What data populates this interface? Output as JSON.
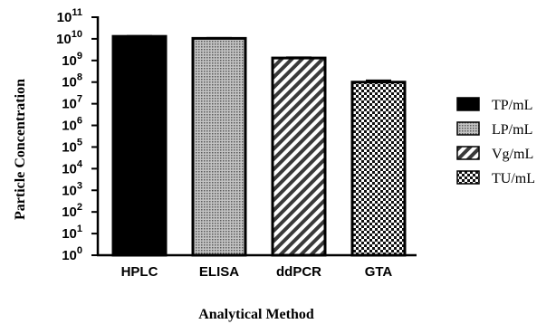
{
  "chart_data": {
    "type": "bar",
    "title": "",
    "xlabel": "Analytical Method",
    "ylabel": "Particle Concentration",
    "categories": [
      "HPLC",
      "ELISA",
      "ddPCR",
      "GTA"
    ],
    "values": [
      13000000000.0,
      10500000000.0,
      1300000000.0,
      100000000.0
    ],
    "error_upper": [
      13500000000.0,
      11000000000.0,
      1400000000.0,
      120000000.0
    ],
    "y_scale": "log",
    "ylim": [
      1,
      100000000000.0
    ],
    "y_ticks": [
      {
        "base": "10",
        "exp": "0"
      },
      {
        "base": "10",
        "exp": "1"
      },
      {
        "base": "10",
        "exp": "2"
      },
      {
        "base": "10",
        "exp": "3"
      },
      {
        "base": "10",
        "exp": "4"
      },
      {
        "base": "10",
        "exp": "5"
      },
      {
        "base": "10",
        "exp": "6"
      },
      {
        "base": "10",
        "exp": "7"
      },
      {
        "base": "10",
        "exp": "8"
      },
      {
        "base": "10",
        "exp": "9"
      },
      {
        "base": "10",
        "exp": "10"
      },
      {
        "base": "10",
        "exp": "11"
      }
    ],
    "legend_position": "right",
    "legend": [
      {
        "label": "TP/mL",
        "pattern": "solid-black"
      },
      {
        "label": "LP/mL",
        "pattern": "dots"
      },
      {
        "label": "Vg/mL",
        "pattern": "diagonal-stripes"
      },
      {
        "label": "TU/mL",
        "pattern": "checkerboard"
      }
    ],
    "grid": false
  }
}
